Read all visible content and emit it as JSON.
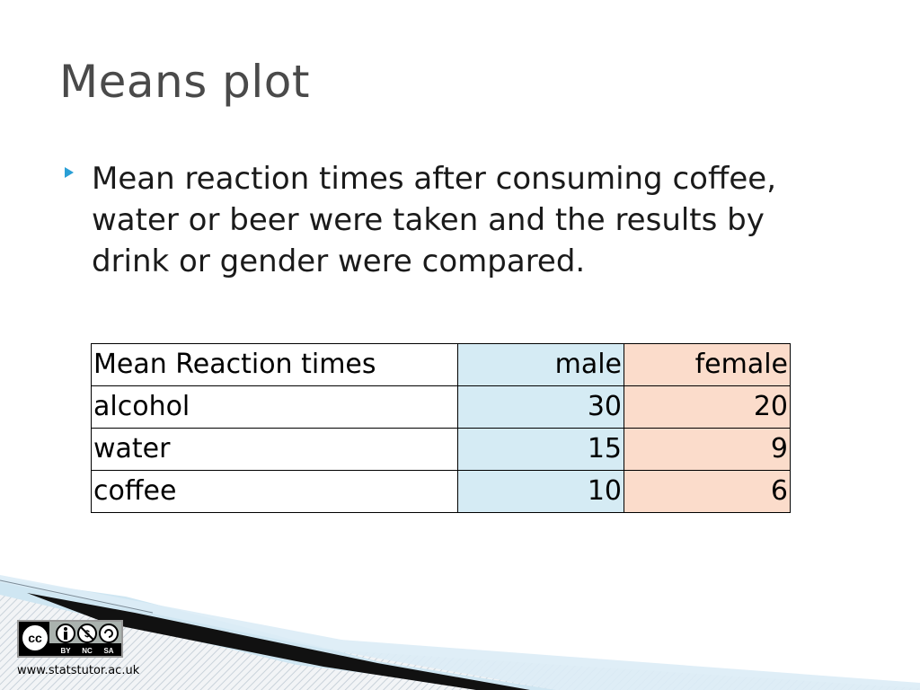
{
  "slide": {
    "title": "Means plot",
    "bullets": [
      "Mean reaction times after consuming coffee, water or beer were taken and the results by drink or gender were compared."
    ]
  },
  "table": {
    "header": {
      "label": "Mean Reaction times",
      "male": "male",
      "female": "female"
    },
    "rows": [
      {
        "label": "alcohol",
        "male": "30",
        "female": "20"
      },
      {
        "label": "water",
        "male": "15",
        "female": "9"
      },
      {
        "label": "coffee",
        "male": "10",
        "female": "6"
      }
    ]
  },
  "license": {
    "badge_labels": [
      "BY",
      "NC",
      "SA"
    ],
    "cc_mark": "cc",
    "website": "www.statstutor.ac.uk"
  },
  "colors": {
    "male_column": "#d5ebf4",
    "female_column": "#fbdccb",
    "bullet": "#2a9fd6",
    "title": "#4a4a4a"
  }
}
